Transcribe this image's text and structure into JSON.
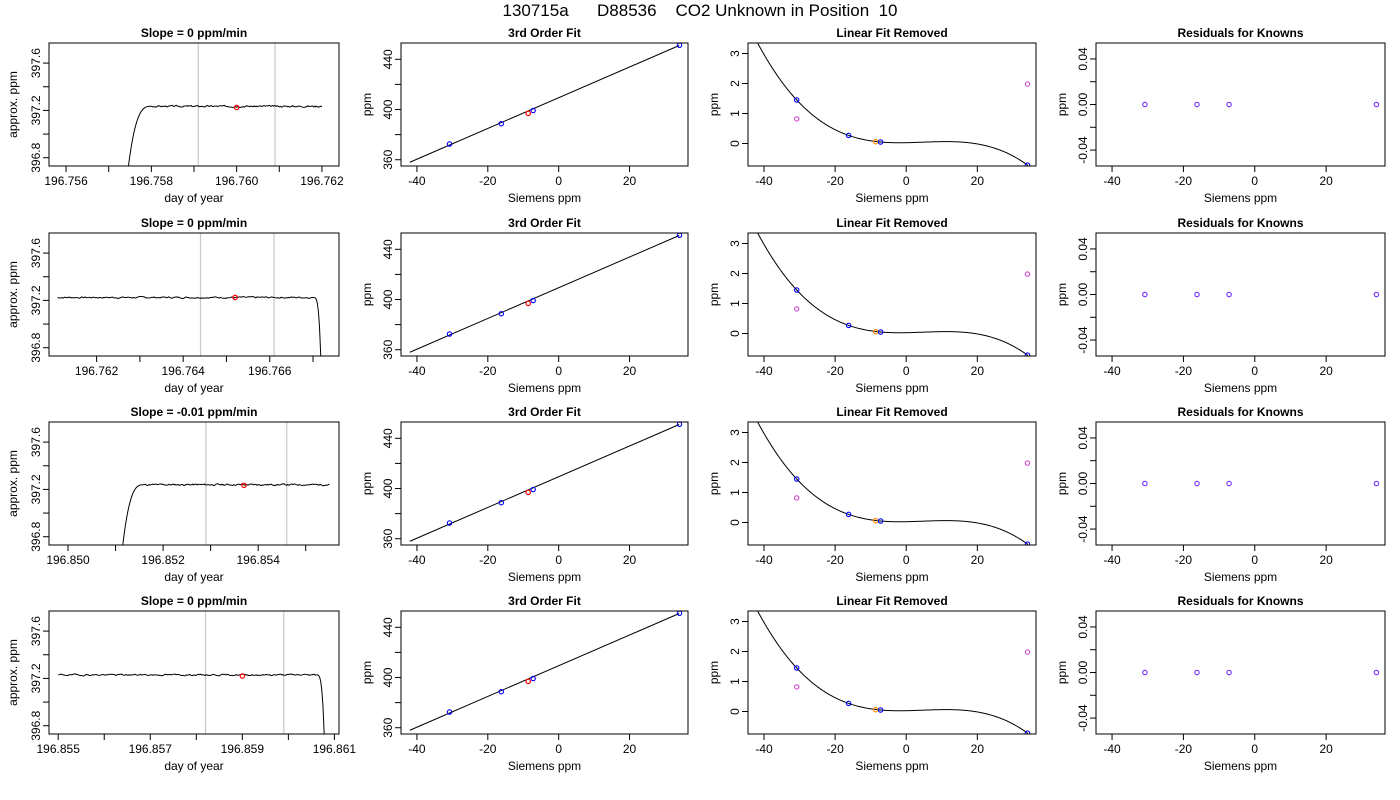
{
  "title": "130715a      D88536    CO2 Unknown in Position  10",
  "colors": {
    "trace": "#000000",
    "vline": "#c8c8c8",
    "fit_point": "#0000ff",
    "unknown_point": "#ff0000",
    "orange_point": "#ff8c00",
    "magenta_point": "#cc33cc",
    "residual_point": "#7733ff"
  },
  "chart_data": [
    {
      "type": "line",
      "row": 0,
      "title": "Slope =  0  ppm/min",
      "xlabel": "day of year",
      "ylabel": "approx. ppm",
      "xlim": [
        196.7556,
        196.7624
      ],
      "ylim": [
        396.73,
        397.77
      ],
      "xticks": [
        196.756,
        196.757,
        196.758,
        196.759,
        196.76,
        196.761,
        196.762
      ],
      "xticklabels": [
        "196.756",
        "",
        "196.758",
        "",
        "196.760",
        "",
        "196.762"
      ],
      "yticks": [
        396.8,
        397.0,
        397.2,
        397.4,
        397.6
      ],
      "yticklabels": [
        "396.8",
        "",
        "397.2",
        "",
        "397.6"
      ],
      "vlines": [
        196.7591,
        196.7609
      ],
      "trace": {
        "start": 196.7574,
        "end": 196.762,
        "level": 397.235,
        "edge": "rise",
        "edge_width": 0.0006,
        "noise": 0.012,
        "seed": 3
      },
      "marker": [
        196.76,
        397.225
      ]
    },
    {
      "type": "scatter",
      "row": 0,
      "title": "3rd Order Fit",
      "xlabel": "Siemens ppm",
      "ylabel": "ppm",
      "xlim": [
        -44.5,
        36.5
      ],
      "ylim": [
        355,
        453
      ],
      "xticks": [
        -40,
        -20,
        0,
        20
      ],
      "xticklabels": [
        "-40",
        "-20",
        "0",
        "20"
      ],
      "yticks": [
        360,
        380,
        400,
        420,
        440
      ],
      "yticklabels": [
        "360",
        "",
        "400",
        "",
        "440"
      ],
      "line": [
        [
          -42,
          358
        ],
        [
          34,
          451
        ]
      ],
      "points": [
        [
          -30.8,
          372.5
        ],
        [
          -16.2,
          388.7
        ],
        [
          -7.2,
          399.2
        ],
        [
          34.1,
          451.2
        ]
      ],
      "unknown": [
        -8.6,
        396.9
      ]
    },
    {
      "type": "scatter",
      "row": 0,
      "title": "Linear Fit Removed",
      "xlabel": "Siemens ppm",
      "ylabel": "ppm",
      "xlim": [
        -44.5,
        36.5
      ],
      "ylim": [
        -0.75,
        3.35
      ],
      "xticks": [
        -40,
        -20,
        0,
        20
      ],
      "xticklabels": [
        "-40",
        "-20",
        "0",
        "20"
      ],
      "yticks": [
        0,
        1,
        2,
        3
      ],
      "yticklabels": [
        "0",
        "1",
        "2",
        "3"
      ],
      "curve_points": [
        [
          -30.8,
          1.45
        ],
        [
          -16.2,
          0.27
        ],
        [
          -7.2,
          0.05
        ],
        [
          34.1,
          -0.72
        ]
      ],
      "fit_points": [
        [
          -30.8,
          1.45
        ],
        [
          -16.2,
          0.27
        ],
        [
          -7.2,
          0.05
        ],
        [
          34.1,
          -0.72
        ]
      ],
      "magenta": [
        [
          -30.8,
          0.82
        ],
        [
          34.1,
          1.98
        ]
      ],
      "orange": [
        [
          -8.6,
          0.06
        ]
      ]
    },
    {
      "type": "scatter",
      "row": 0,
      "title": "Residuals for Knowns",
      "xlabel": "Siemens ppm",
      "ylabel": "ppm",
      "xlim": [
        -44.5,
        36.5
      ],
      "ylim": [
        -0.054,
        0.054
      ],
      "xticks": [
        -40,
        -20,
        0,
        20
      ],
      "xticklabels": [
        "-40",
        "-20",
        "0",
        "20"
      ],
      "yticks": [
        -0.04,
        -0.02,
        0.0,
        0.02,
        0.04
      ],
      "yticklabels": [
        "-0.04",
        "",
        "0.00",
        "",
        "0.04"
      ],
      "points": [
        [
          -30.8,
          0
        ],
        [
          -16.2,
          0
        ],
        [
          -7.2,
          0
        ],
        [
          34.1,
          0
        ]
      ]
    },
    {
      "type": "line",
      "row": 1,
      "title": "Slope =  0  ppm/min",
      "xlabel": "day of year",
      "ylabel": "approx. ppm",
      "xlim": [
        196.7609,
        196.7676
      ],
      "ylim": [
        396.73,
        397.77
      ],
      "xticks": [
        196.762,
        196.763,
        196.764,
        196.765,
        196.766,
        196.767
      ],
      "xticklabels": [
        "196.762",
        "",
        "196.764",
        "",
        "196.766",
        ""
      ],
      "yticks": [
        396.8,
        397.0,
        397.2,
        397.4,
        397.6
      ],
      "yticklabels": [
        "396.8",
        "",
        "397.2",
        "",
        "397.6"
      ],
      "vlines": [
        196.7644,
        196.7661
      ],
      "trace": {
        "start": 196.7611,
        "end": 196.7672,
        "level": 397.225,
        "edge": "fall",
        "edge_width": 0.0002,
        "noise": 0.012,
        "seed": 7
      },
      "marker": [
        196.7652,
        397.225
      ]
    },
    {
      "type": "scatter",
      "row": 1,
      "title": "3rd Order Fit",
      "xlabel": "Siemens ppm",
      "ylabel": "ppm",
      "xlim": [
        -44.5,
        36.5
      ],
      "ylim": [
        355,
        453
      ],
      "xticks": [
        -40,
        -20,
        0,
        20
      ],
      "xticklabels": [
        "-40",
        "-20",
        "0",
        "20"
      ],
      "yticks": [
        360,
        380,
        400,
        420,
        440
      ],
      "yticklabels": [
        "360",
        "",
        "400",
        "",
        "440"
      ],
      "line": [
        [
          -42,
          358
        ],
        [
          34,
          451
        ]
      ],
      "points": [
        [
          -30.8,
          372.5
        ],
        [
          -16.2,
          388.7
        ],
        [
          -7.2,
          399.2
        ],
        [
          34.1,
          451.2
        ]
      ],
      "unknown": [
        -8.6,
        396.9
      ]
    },
    {
      "type": "scatter",
      "row": 1,
      "title": "Linear Fit Removed",
      "xlabel": "Siemens ppm",
      "ylabel": "ppm",
      "xlim": [
        -44.5,
        36.5
      ],
      "ylim": [
        -0.75,
        3.35
      ],
      "xticks": [
        -40,
        -20,
        0,
        20
      ],
      "xticklabels": [
        "-40",
        "-20",
        "0",
        "20"
      ],
      "yticks": [
        0,
        1,
        2,
        3
      ],
      "yticklabels": [
        "0",
        "1",
        "2",
        "3"
      ],
      "curve_points": [
        [
          -30.8,
          1.45
        ],
        [
          -16.2,
          0.27
        ],
        [
          -7.2,
          0.05
        ],
        [
          34.1,
          -0.72
        ]
      ],
      "fit_points": [
        [
          -30.8,
          1.45
        ],
        [
          -16.2,
          0.27
        ],
        [
          -7.2,
          0.05
        ],
        [
          34.1,
          -0.72
        ]
      ],
      "magenta": [
        [
          -30.8,
          0.82
        ],
        [
          34.1,
          1.98
        ]
      ],
      "orange": [
        [
          -8.6,
          0.06
        ]
      ]
    },
    {
      "type": "scatter",
      "row": 1,
      "title": "Residuals for Knowns",
      "xlabel": "Siemens ppm",
      "ylabel": "ppm",
      "xlim": [
        -44.5,
        36.5
      ],
      "ylim": [
        -0.054,
        0.054
      ],
      "xticks": [
        -40,
        -20,
        0,
        20
      ],
      "xticklabels": [
        "-40",
        "-20",
        "0",
        "20"
      ],
      "yticks": [
        -0.04,
        -0.02,
        0.0,
        0.02,
        0.04
      ],
      "yticklabels": [
        "-0.04",
        "",
        "0.00",
        "",
        "0.04"
      ],
      "points": [
        [
          -30.8,
          0
        ],
        [
          -16.2,
          0
        ],
        [
          -7.2,
          0
        ],
        [
          34.1,
          0
        ]
      ]
    },
    {
      "type": "line",
      "row": 2,
      "title": "Slope =  -0.01  ppm/min",
      "xlabel": "day of year",
      "ylabel": "approx. ppm",
      "xlim": [
        196.8496,
        196.8557
      ],
      "ylim": [
        396.73,
        397.77
      ],
      "xticks": [
        196.85,
        196.851,
        196.852,
        196.853,
        196.854,
        196.855
      ],
      "xticklabels": [
        "196.850",
        "",
        "196.852",
        "",
        "196.854",
        ""
      ],
      "yticks": [
        396.8,
        397.0,
        397.2,
        397.4,
        397.6
      ],
      "yticklabels": [
        "396.8",
        "",
        "397.2",
        "",
        "397.6"
      ],
      "vlines": [
        196.8529,
        196.8546
      ],
      "trace": {
        "start": 196.8511,
        "end": 196.8555,
        "level": 397.24,
        "edge": "rise",
        "edge_width": 0.0005,
        "noise": 0.012,
        "seed": 11
      },
      "marker": [
        196.8537,
        397.235
      ]
    },
    {
      "type": "scatter",
      "row": 2,
      "title": "3rd Order Fit",
      "xlabel": "Siemens ppm",
      "ylabel": "ppm",
      "xlim": [
        -44.5,
        36.5
      ],
      "ylim": [
        355,
        453
      ],
      "xticks": [
        -40,
        -20,
        0,
        20
      ],
      "xticklabels": [
        "-40",
        "-20",
        "0",
        "20"
      ],
      "yticks": [
        360,
        380,
        400,
        420,
        440
      ],
      "yticklabels": [
        "360",
        "",
        "400",
        "",
        "440"
      ],
      "line": [
        [
          -42,
          358
        ],
        [
          34,
          451
        ]
      ],
      "points": [
        [
          -30.8,
          372.5
        ],
        [
          -16.2,
          388.7
        ],
        [
          -7.2,
          399.2
        ],
        [
          34.1,
          451.2
        ]
      ],
      "unknown": [
        -8.6,
        396.9
      ]
    },
    {
      "type": "scatter",
      "row": 2,
      "title": "Linear Fit Removed",
      "xlabel": "Siemens ppm",
      "ylabel": "ppm",
      "xlim": [
        -44.5,
        36.5
      ],
      "ylim": [
        -0.75,
        3.35
      ],
      "xticks": [
        -40,
        -20,
        0,
        20
      ],
      "xticklabels": [
        "-40",
        "-20",
        "0",
        "20"
      ],
      "yticks": [
        0,
        1,
        2,
        3
      ],
      "yticklabels": [
        "0",
        "1",
        "2",
        "3"
      ],
      "curve_points": [
        [
          -30.8,
          1.45
        ],
        [
          -16.2,
          0.27
        ],
        [
          -7.2,
          0.05
        ],
        [
          34.1,
          -0.72
        ]
      ],
      "fit_points": [
        [
          -30.8,
          1.45
        ],
        [
          -16.2,
          0.27
        ],
        [
          -7.2,
          0.05
        ],
        [
          34.1,
          -0.72
        ]
      ],
      "magenta": [
        [
          -30.8,
          0.82
        ],
        [
          34.1,
          1.98
        ]
      ],
      "orange": [
        [
          -8.6,
          0.06
        ]
      ]
    },
    {
      "type": "scatter",
      "row": 2,
      "title": "Residuals for Knowns",
      "xlabel": "Siemens ppm",
      "ylabel": "ppm",
      "xlim": [
        -44.5,
        36.5
      ],
      "ylim": [
        -0.054,
        0.054
      ],
      "xticks": [
        -40,
        -20,
        0,
        20
      ],
      "xticklabels": [
        "-40",
        "-20",
        "0",
        "20"
      ],
      "yticks": [
        -0.04,
        -0.02,
        0.0,
        0.02,
        0.04
      ],
      "yticklabels": [
        "-0.04",
        "",
        "0.00",
        "",
        "0.04"
      ],
      "points": [
        [
          -30.8,
          0
        ],
        [
          -16.2,
          0
        ],
        [
          -7.2,
          0
        ],
        [
          34.1,
          0
        ]
      ]
    },
    {
      "type": "line",
      "row": 3,
      "title": "Slope =  0  ppm/min",
      "xlabel": "day of year",
      "ylabel": "approx. ppm",
      "xlim": [
        196.8548,
        196.8611
      ],
      "ylim": [
        396.73,
        397.77
      ],
      "xticks": [
        196.855,
        196.856,
        196.857,
        196.858,
        196.859,
        196.86,
        196.861
      ],
      "xticklabels": [
        "196.855",
        "",
        "196.857",
        "",
        "196.859",
        "",
        "196.861"
      ],
      "yticks": [
        396.8,
        397.0,
        397.2,
        397.4,
        397.6
      ],
      "yticklabels": [
        "396.8",
        "",
        "397.2",
        "",
        "397.6"
      ],
      "vlines": [
        196.8582,
        196.8599
      ],
      "trace": {
        "start": 196.855,
        "end": 196.8608,
        "level": 397.23,
        "edge": "fall",
        "edge_width": 0.0002,
        "noise": 0.012,
        "seed": 19
      },
      "marker": [
        196.859,
        397.22
      ]
    },
    {
      "type": "scatter",
      "row": 3,
      "title": "3rd Order Fit",
      "xlabel": "Siemens ppm",
      "ylabel": "ppm",
      "xlim": [
        -44.5,
        36.5
      ],
      "ylim": [
        355,
        453
      ],
      "xticks": [
        -40,
        -20,
        0,
        20
      ],
      "xticklabels": [
        "-40",
        "-20",
        "0",
        "20"
      ],
      "yticks": [
        360,
        380,
        400,
        420,
        440
      ],
      "yticklabels": [
        "360",
        "",
        "400",
        "",
        "440"
      ],
      "line": [
        [
          -42,
          358
        ],
        [
          34,
          451
        ]
      ],
      "points": [
        [
          -30.8,
          372.5
        ],
        [
          -16.2,
          388.7
        ],
        [
          -7.2,
          399.2
        ],
        [
          34.1,
          451.2
        ]
      ],
      "unknown": [
        -8.6,
        396.9
      ]
    },
    {
      "type": "scatter",
      "row": 3,
      "title": "Linear Fit Removed",
      "xlabel": "Siemens ppm",
      "ylabel": "ppm",
      "xlim": [
        -44.5,
        36.5
      ],
      "ylim": [
        -0.75,
        3.35
      ],
      "xticks": [
        -40,
        -20,
        0,
        20
      ],
      "xticklabels": [
        "-40",
        "-20",
        "0",
        "20"
      ],
      "yticks": [
        0,
        1,
        2,
        3
      ],
      "yticklabels": [
        "0",
        "1",
        "2",
        "3"
      ],
      "curve_points": [
        [
          -30.8,
          1.45
        ],
        [
          -16.2,
          0.27
        ],
        [
          -7.2,
          0.05
        ],
        [
          34.1,
          -0.72
        ]
      ],
      "fit_points": [
        [
          -30.8,
          1.45
        ],
        [
          -16.2,
          0.27
        ],
        [
          -7.2,
          0.05
        ],
        [
          34.1,
          -0.72
        ]
      ],
      "magenta": [
        [
          -30.8,
          0.82
        ],
        [
          34.1,
          1.98
        ]
      ],
      "orange": [
        [
          -8.6,
          0.06
        ]
      ]
    },
    {
      "type": "scatter",
      "row": 3,
      "title": "Residuals for Knowns",
      "xlabel": "Siemens ppm",
      "ylabel": "ppm",
      "xlim": [
        -44.5,
        36.5
      ],
      "ylim": [
        -0.054,
        0.054
      ],
      "xticks": [
        -40,
        -20,
        0,
        20
      ],
      "xticklabels": [
        "-40",
        "-20",
        "0",
        "20"
      ],
      "yticks": [
        -0.04,
        -0.02,
        0.0,
        0.02,
        0.04
      ],
      "yticklabels": [
        "-0.04",
        "",
        "0.00",
        "",
        "0.04"
      ],
      "points": [
        [
          -30.8,
          0
        ],
        [
          -16.2,
          0
        ],
        [
          -7.2,
          0
        ],
        [
          34.1,
          0
        ]
      ]
    }
  ]
}
